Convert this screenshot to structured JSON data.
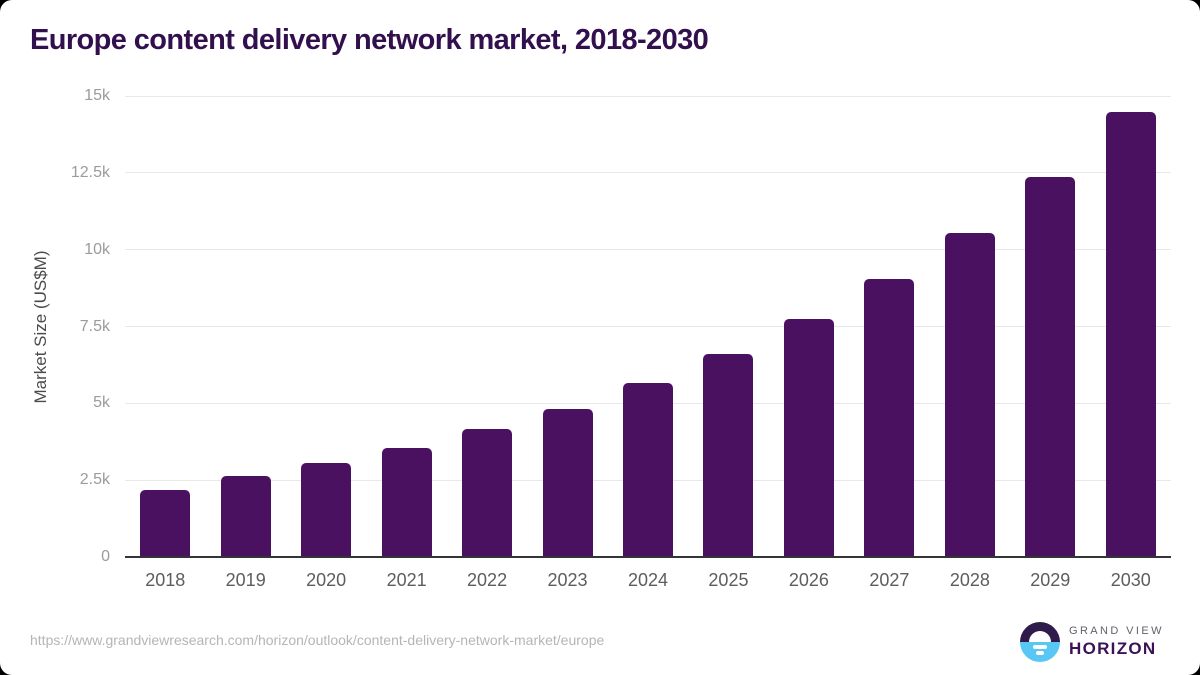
{
  "title": "Europe content delivery network market, 2018-2030",
  "chart_data": {
    "type": "bar",
    "title": "Europe content delivery network market, 2018-2030",
    "categories": [
      "2018",
      "2019",
      "2020",
      "2021",
      "2022",
      "2023",
      "2024",
      "2025",
      "2026",
      "2027",
      "2028",
      "2029",
      "2030"
    ],
    "values": [
      2190,
      2640,
      3070,
      3540,
      4160,
      4830,
      5650,
      6620,
      7730,
      9030,
      10540,
      12380,
      14470
    ],
    "xlabel": "",
    "ylabel": "Market Size (US$M)",
    "ylim": [
      0,
      15000
    ],
    "yticks": [
      0,
      2500,
      5000,
      7500,
      10000,
      12500,
      15000
    ],
    "ytick_labels": [
      "0",
      "2.5k",
      "5k",
      "7.5k",
      "10k",
      "12.5k",
      "15k"
    ],
    "bar_color": "#4a1161",
    "grid": "horizontal",
    "legend": "none"
  },
  "colors": {
    "title_text": "#32104e",
    "bar": "#4a1161",
    "gridline": "#e8e8e8",
    "axis_line": "#333338",
    "y_tick_text": "#9b9b9b",
    "x_tick_text": "#5c5d5f",
    "source_text": "#b5b5b5",
    "logo_purple": "#2e1a4b",
    "logo_blue": "#58c7f3"
  },
  "footer": {
    "source_url": "https://www.grandviewresearch.com/horizon/outlook/content-delivery-network-market/europe",
    "logo": {
      "brand_top": "GRAND VIEW",
      "brand_bottom": "HORIZON"
    }
  }
}
